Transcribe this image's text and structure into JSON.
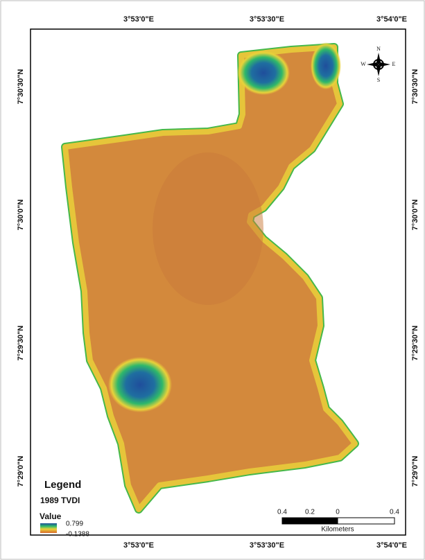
{
  "coordinate_labels": {
    "top": [
      "3°53'0\"E",
      "3°53'30\"E",
      "3°54'0\"E"
    ],
    "bottom": [
      "3°53'0\"E",
      "3°53'30\"E",
      "3°54'0\"E"
    ],
    "left": [
      "7°30'30\"N",
      "7°30'0\"N",
      "7°29'30\"N",
      "7°29'0\"N"
    ],
    "right": [
      "7°30'30\"N",
      "7°30'0\"N",
      "7°29'30\"N",
      "7°29'0\"N"
    ]
  },
  "north_arrow": {
    "n": "N",
    "s": "S",
    "e": "E",
    "w": "W"
  },
  "legend": {
    "title": "Legend",
    "layer": "1989 TVDI",
    "field": "Value",
    "max": 0.799,
    "min": -0.1388
  },
  "scale_bar": {
    "labels": [
      0.4,
      0.2,
      0,
      0.4
    ],
    "unit": "Kilometers"
  }
}
